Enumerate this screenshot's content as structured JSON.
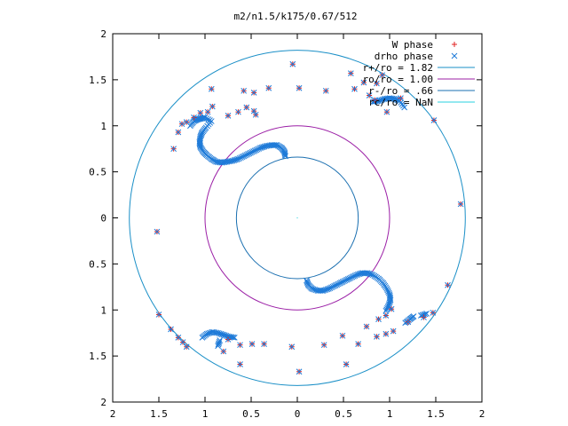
{
  "chart_data": {
    "type": "scatter",
    "title": "m2/n1.5/k175/0.67/512",
    "xlabel": "",
    "ylabel": "",
    "xlim": [
      -2,
      2
    ],
    "ylim": [
      -2,
      2
    ],
    "x_tick_values": [
      -2,
      -1.5,
      -1,
      -0.5,
      0,
      0.5,
      1,
      1.5,
      2
    ],
    "x_tick_labels": [
      "2",
      "1.5",
      "1",
      "0.5",
      "0",
      "0.5",
      "1",
      "1.5",
      "2"
    ],
    "y_tick_values": [
      2,
      1.5,
      1,
      0.5,
      0,
      -0.5,
      -1,
      -1.5,
      -2
    ],
    "y_tick_labels": [
      "2",
      "1.5",
      "1",
      "0.5",
      "0",
      "0.5",
      "1",
      "1.5",
      "2"
    ],
    "grid": false,
    "legend_position": "top-right",
    "circles": [
      {
        "name": "r+/ro = 1.82",
        "radius": 1.82,
        "color": "#1a8fc7"
      },
      {
        "name": "ro/ro = 1.00",
        "radius": 1.0,
        "color": "#9b1fa6"
      },
      {
        "name": "r-/ro = .66",
        "radius": 0.66,
        "color": "#1a6fb0"
      },
      {
        "name": "rc/ro = NaN",
        "radius": null,
        "color": "#2ad0e0"
      }
    ],
    "series": [
      {
        "name": "W phase",
        "marker": "+",
        "color": "#e02020",
        "points": [
          [
            -0.05,
            1.67
          ],
          [
            0.02,
            1.41
          ],
          [
            -0.31,
            1.41
          ],
          [
            -0.47,
            1.36
          ],
          [
            -0.58,
            1.38
          ],
          [
            -0.47,
            1.16
          ],
          [
            -0.45,
            1.12
          ],
          [
            -0.55,
            1.2
          ],
          [
            -0.64,
            1.15
          ],
          [
            -0.75,
            1.11
          ],
          [
            -0.93,
            1.4
          ],
          [
            -0.92,
            1.21
          ],
          [
            -0.97,
            1.15
          ],
          [
            -1.05,
            1.14
          ],
          [
            -1.12,
            1.09
          ],
          [
            -1.2,
            1.04
          ],
          [
            -1.25,
            1.02
          ],
          [
            -1.29,
            0.93
          ],
          [
            -1.34,
            0.75
          ],
          [
            -1.52,
            -0.15
          ],
          [
            -1.5,
            -1.05
          ],
          [
            -1.37,
            -1.21
          ],
          [
            -1.29,
            -1.3
          ],
          [
            -1.24,
            -1.35
          ],
          [
            -1.2,
            -1.4
          ],
          [
            -0.62,
            -1.59
          ],
          [
            -0.06,
            -1.4
          ],
          [
            0.02,
            -1.67
          ],
          [
            0.29,
            -1.38
          ],
          [
            0.53,
            -1.59
          ],
          [
            0.66,
            -1.37
          ],
          [
            0.86,
            -1.29
          ],
          [
            0.96,
            -1.26
          ],
          [
            1.04,
            -1.23
          ],
          [
            1.2,
            -1.13
          ],
          [
            1.37,
            -1.08
          ],
          [
            1.47,
            -1.03
          ],
          [
            1.63,
            -0.73
          ],
          [
            1.77,
            0.15
          ],
          [
            1.48,
            1.06
          ],
          [
            0.31,
            1.38
          ],
          [
            0.62,
            1.4
          ],
          [
            0.78,
            1.33
          ],
          [
            0.84,
            1.28
          ],
          [
            0.97,
            1.15
          ],
          [
            0.58,
            1.57
          ],
          [
            0.72,
            1.47
          ],
          [
            0.86,
            1.46
          ],
          [
            0.92,
            1.55
          ],
          [
            1.12,
            1.3
          ],
          [
            0.49,
            -1.28
          ],
          [
            0.75,
            -1.18
          ],
          [
            0.88,
            -1.1
          ],
          [
            0.96,
            -1.06
          ],
          [
            1.02,
            -0.99
          ],
          [
            -0.75,
            -1.32
          ],
          [
            -0.8,
            -1.45
          ],
          [
            -0.62,
            -1.38
          ],
          [
            -0.49,
            -1.37
          ],
          [
            -0.36,
            -1.37
          ]
        ]
      },
      {
        "name": "drho phase",
        "marker": "x",
        "color": "#1e7ad8",
        "points": [
          [
            -0.05,
            1.67
          ],
          [
            0.02,
            1.41
          ],
          [
            -0.31,
            1.41
          ],
          [
            -0.47,
            1.36
          ],
          [
            -0.58,
            1.38
          ],
          [
            -0.47,
            1.16
          ],
          [
            -0.45,
            1.12
          ],
          [
            -0.55,
            1.2
          ],
          [
            -0.64,
            1.15
          ],
          [
            -0.75,
            1.11
          ],
          [
            -0.93,
            1.4
          ],
          [
            -0.92,
            1.21
          ],
          [
            -0.97,
            1.15
          ],
          [
            -1.05,
            1.14
          ],
          [
            -1.12,
            1.09
          ],
          [
            -1.2,
            1.04
          ],
          [
            -1.25,
            1.02
          ],
          [
            -1.29,
            0.93
          ],
          [
            -1.34,
            0.75
          ],
          [
            -1.52,
            -0.15
          ],
          [
            -1.5,
            -1.05
          ],
          [
            -1.37,
            -1.21
          ],
          [
            -1.29,
            -1.3
          ],
          [
            -1.24,
            -1.35
          ],
          [
            -1.2,
            -1.4
          ],
          [
            -0.62,
            -1.59
          ],
          [
            -0.06,
            -1.4
          ],
          [
            0.02,
            -1.67
          ],
          [
            0.29,
            -1.38
          ],
          [
            0.53,
            -1.59
          ],
          [
            0.66,
            -1.37
          ],
          [
            0.86,
            -1.29
          ],
          [
            0.96,
            -1.26
          ],
          [
            1.04,
            -1.23
          ],
          [
            1.2,
            -1.13
          ],
          [
            1.37,
            -1.08
          ],
          [
            1.47,
            -1.03
          ],
          [
            1.63,
            -0.73
          ],
          [
            1.77,
            0.15
          ],
          [
            1.48,
            1.06
          ],
          [
            0.31,
            1.38
          ],
          [
            0.62,
            1.4
          ],
          [
            0.78,
            1.33
          ],
          [
            0.84,
            1.28
          ],
          [
            0.97,
            1.15
          ],
          [
            0.58,
            1.57
          ],
          [
            0.72,
            1.47
          ],
          [
            0.86,
            1.46
          ],
          [
            0.92,
            1.55
          ],
          [
            1.12,
            1.3
          ],
          [
            0.49,
            -1.28
          ],
          [
            0.75,
            -1.18
          ],
          [
            0.88,
            -1.1
          ],
          [
            0.96,
            -1.06
          ],
          [
            1.02,
            -0.99
          ],
          [
            -0.75,
            -1.32
          ],
          [
            -0.8,
            -1.45
          ],
          [
            -0.62,
            -1.38
          ],
          [
            -0.49,
            -1.37
          ],
          [
            -0.36,
            -1.37
          ]
        ]
      }
    ],
    "dense_bands": [
      {
        "name": "drho phase",
        "color": "#1e7ad8",
        "points": [
          [
            -1.16,
            1.0
          ],
          [
            -1.12,
            1.05
          ],
          [
            -1.08,
            1.07
          ],
          [
            -1.04,
            1.08
          ],
          [
            -1.0,
            1.09
          ],
          [
            -0.93,
            1.05
          ],
          [
            -0.99,
            0.98
          ],
          [
            -1.03,
            0.93
          ],
          [
            -1.05,
            0.88
          ],
          [
            -1.06,
            0.82
          ],
          [
            -1.05,
            0.77
          ],
          [
            -1.02,
            0.72
          ],
          [
            -0.98,
            0.68
          ],
          [
            -0.93,
            0.64
          ],
          [
            -0.88,
            0.61
          ],
          [
            -0.82,
            0.6
          ],
          [
            -0.76,
            0.61
          ],
          [
            -0.7,
            0.62
          ],
          [
            -0.64,
            0.64
          ],
          [
            -0.58,
            0.67
          ],
          [
            -0.52,
            0.7
          ],
          [
            -0.46,
            0.73
          ],
          [
            -0.4,
            0.76
          ],
          [
            -0.34,
            0.78
          ],
          [
            -0.28,
            0.79
          ],
          [
            -0.22,
            0.79
          ],
          [
            -0.17,
            0.76
          ],
          [
            -0.14,
            0.72
          ],
          [
            -0.13,
            0.67
          ],
          [
            0.1,
            -0.68
          ],
          [
            0.12,
            -0.73
          ],
          [
            0.16,
            -0.77
          ],
          [
            0.22,
            -0.79
          ],
          [
            0.28,
            -0.79
          ],
          [
            0.34,
            -0.77
          ],
          [
            0.4,
            -0.74
          ],
          [
            0.46,
            -0.71
          ],
          [
            0.52,
            -0.68
          ],
          [
            0.58,
            -0.65
          ],
          [
            0.64,
            -0.62
          ],
          [
            0.7,
            -0.6
          ],
          [
            0.76,
            -0.6
          ],
          [
            0.82,
            -0.62
          ],
          [
            0.88,
            -0.66
          ],
          [
            0.93,
            -0.71
          ],
          [
            0.97,
            -0.77
          ],
          [
            1.0,
            -0.83
          ],
          [
            1.01,
            -0.89
          ],
          [
            0.99,
            -0.95
          ],
          [
            0.96,
            -1.01
          ],
          [
            -1.03,
            -1.3
          ],
          [
            -0.98,
            -1.26
          ],
          [
            -0.92,
            -1.24
          ],
          [
            -0.86,
            -1.25
          ],
          [
            -0.8,
            -1.27
          ],
          [
            -0.74,
            -1.29
          ],
          [
            -0.68,
            -1.3
          ],
          [
            -0.84,
            -1.33
          ],
          [
            -0.86,
            -1.39
          ],
          [
            1.16,
            1.2
          ],
          [
            1.11,
            1.27
          ],
          [
            1.06,
            1.29
          ],
          [
            1.0,
            1.3
          ],
          [
            0.94,
            1.29
          ],
          [
            0.88,
            1.27
          ],
          [
            0.82,
            1.26
          ],
          [
            1.26,
            -1.07
          ],
          [
            1.22,
            -1.1
          ],
          [
            1.17,
            -1.14
          ],
          [
            1.34,
            -1.06
          ],
          [
            1.4,
            -1.04
          ]
        ]
      }
    ]
  }
}
